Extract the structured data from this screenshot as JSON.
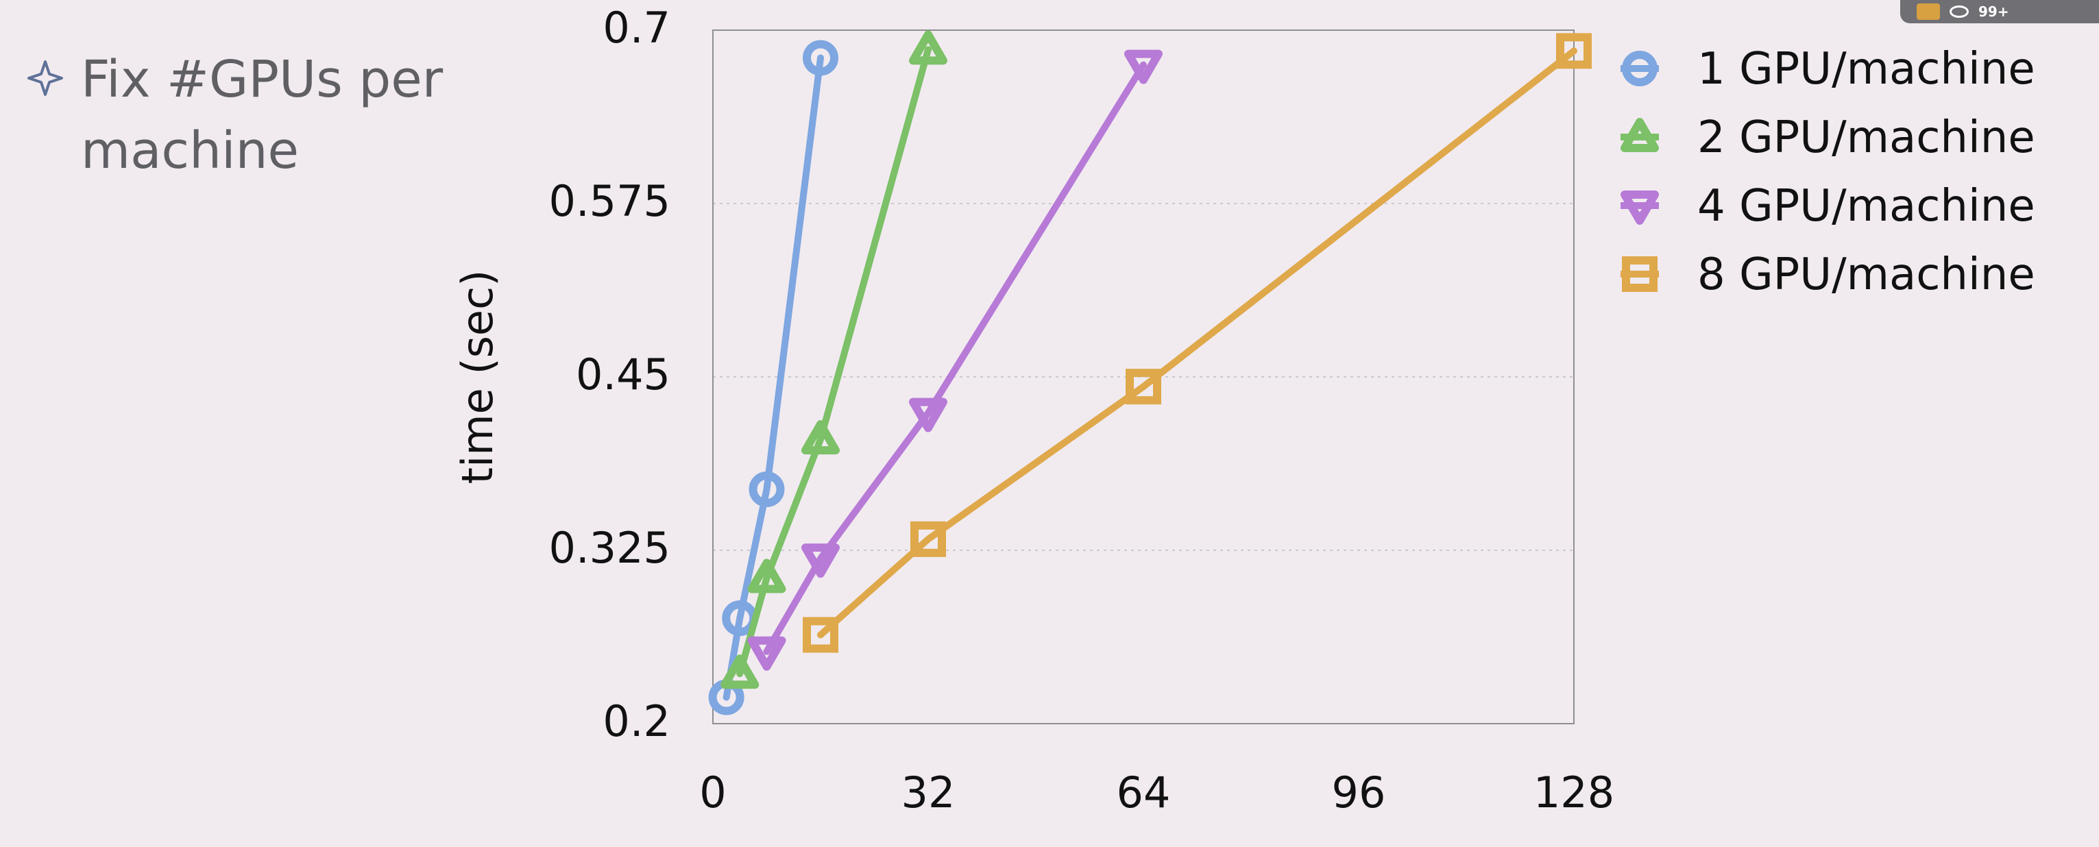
{
  "slide": {
    "bullet_text": "Fix #GPUs per machine",
    "overlay_count": "99+"
  },
  "chart_data": {
    "type": "line",
    "title": "",
    "xlabel": "",
    "ylabel": "time (sec)",
    "xlim": [
      0,
      128
    ],
    "ylim": [
      0.2,
      0.7
    ],
    "xticks": [
      "0",
      "32",
      "64",
      "96",
      "128"
    ],
    "yticks": [
      "0.2",
      "0.325",
      "0.45",
      "0.575",
      "0.7"
    ],
    "grid": true,
    "legend_position": "right",
    "series": [
      {
        "name": "1 GPU/machine",
        "marker": "circle",
        "color": "#7ea6e0",
        "points": [
          {
            "x": 2,
            "y": 0.219
          },
          {
            "x": 4,
            "y": 0.276
          },
          {
            "x": 8,
            "y": 0.369
          },
          {
            "x": 16,
            "y": 0.68
          }
        ]
      },
      {
        "name": "2 GPU/machine",
        "marker": "triangle-up",
        "color": "#7cc067",
        "points": [
          {
            "x": 4,
            "y": 0.236
          },
          {
            "x": 8,
            "y": 0.305
          },
          {
            "x": 16,
            "y": 0.405
          },
          {
            "x": 32,
            "y": 0.686
          }
        ]
      },
      {
        "name": "4 GPU/machine",
        "marker": "triangle-down",
        "color": "#b77ad6",
        "points": [
          {
            "x": 8,
            "y": 0.252
          },
          {
            "x": 16,
            "y": 0.319
          },
          {
            "x": 32,
            "y": 0.424
          },
          {
            "x": 64,
            "y": 0.675
          }
        ]
      },
      {
        "name": "8 GPU/machine",
        "marker": "square",
        "color": "#dfa84a",
        "points": [
          {
            "x": 16,
            "y": 0.264
          },
          {
            "x": 32,
            "y": 0.333
          },
          {
            "x": 64,
            "y": 0.443
          },
          {
            "x": 128,
            "y": 0.685
          }
        ]
      }
    ]
  },
  "colors": {
    "background": "#f1ebf0",
    "axis": "#8f8f8f",
    "grid": "#c9c9c9",
    "bullet": "#5f7197"
  }
}
